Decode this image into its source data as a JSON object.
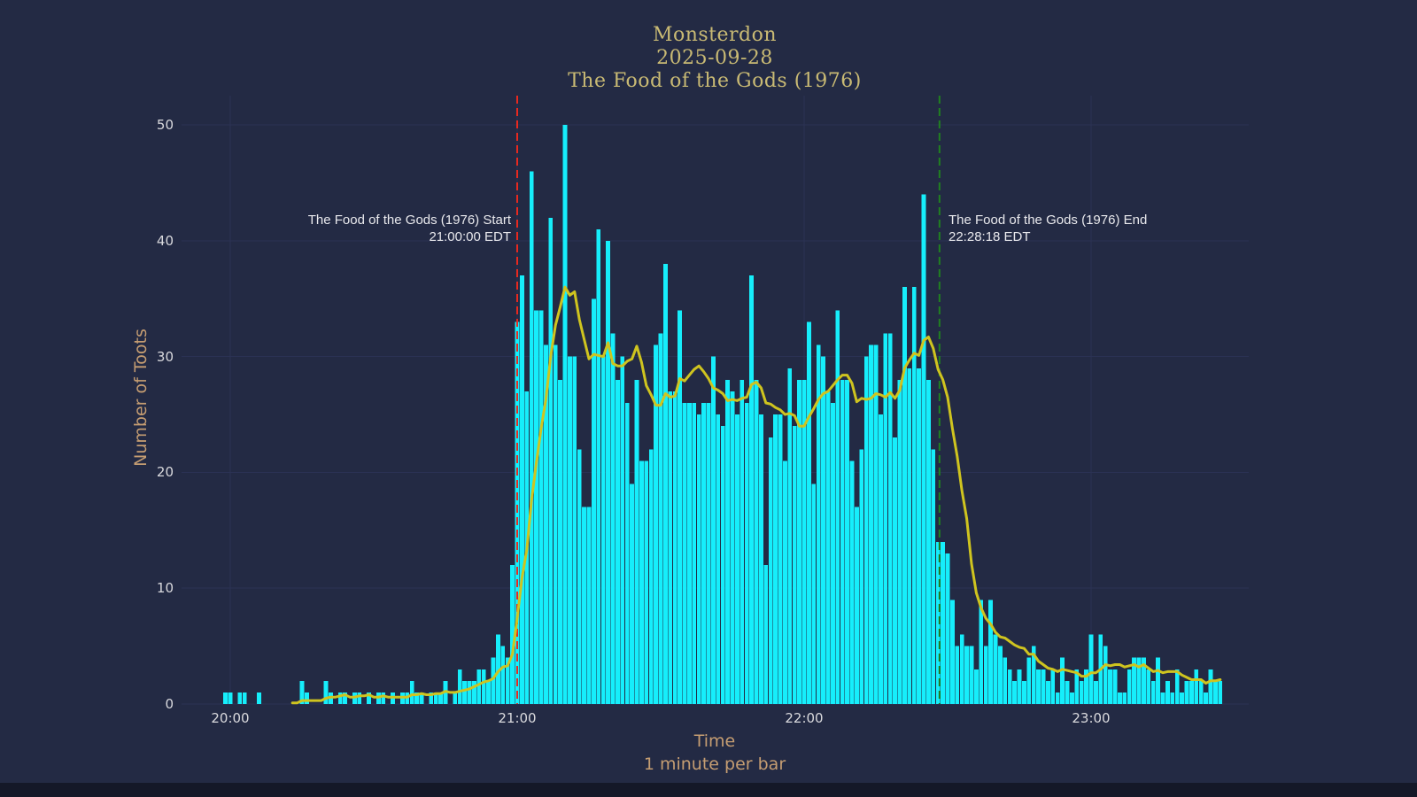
{
  "title": {
    "line1": "Monsterdon",
    "line2": "2025-09-28",
    "line3": "The Food of the Gods (1976)"
  },
  "axes": {
    "y_label": "Number of Toots",
    "x_label": "Time",
    "x_sublabel": "1 minute per bar",
    "y_ticks": [
      {
        "label": "0",
        "v": 0
      },
      {
        "label": "10",
        "v": 10
      },
      {
        "label": "20",
        "v": 20
      },
      {
        "label": "30",
        "v": 30
      },
      {
        "label": "40",
        "v": 40
      },
      {
        "label": "50",
        "v": 50
      }
    ],
    "x_ticks": [
      {
        "label": "20:00",
        "minutes": 0
      },
      {
        "label": "21:00",
        "minutes": 60
      },
      {
        "label": "22:00",
        "minutes": 120
      },
      {
        "label": "23:00",
        "minutes": 180
      }
    ]
  },
  "annotations": {
    "start": {
      "line1": "The Food of the Gods (1976) Start",
      "line2": "21:00:00 EDT"
    },
    "end": {
      "line1": "The Food of the Gods (1976) End",
      "line2": "22:28:18 EDT"
    }
  },
  "colors": {
    "bg": "#232a44",
    "grid": "#2b3254",
    "bar": "#16eefb",
    "line": "#cfc41f",
    "start_marker": "#e8291f",
    "end_marker": "#208020",
    "title": "#c9ba74",
    "tan": "#c59d72",
    "tick": "#d9d9dd",
    "annotation": "#e9e9ed",
    "bottom_strip": "#141828"
  },
  "chart_data": {
    "type": "bar",
    "title": "Monsterdon 2025-09-28 The Food of the Gods (1976)",
    "xlabel": "Time (1 minute per bar)",
    "ylabel": "Number of Toots",
    "x_start_time": "19:59",
    "x_end_time": "23:27",
    "step_minutes": 1,
    "ylim": [
      0,
      52.5
    ],
    "grid": true,
    "overlay_line": "trailing 10-minute moving average of toots per minute",
    "line_window_minutes": 10,
    "line_start_index": 14,
    "start_marker": {
      "time": "21:00:00 EDT",
      "minutes_after_2000": 60
    },
    "end_marker": {
      "time": "22:28:18 EDT",
      "minutes_after_2000": 148.3
    },
    "values": [
      1,
      1,
      0,
      1,
      1,
      0,
      0,
      1,
      0,
      0,
      0,
      0,
      0,
      0,
      0,
      0,
      2,
      1,
      0,
      0,
      0,
      2,
      1,
      0,
      1,
      1,
      0,
      1,
      1,
      0,
      1,
      0,
      1,
      1,
      0,
      1,
      0,
      1,
      1,
      2,
      1,
      1,
      0,
      1,
      1,
      1,
      2,
      0,
      1,
      3,
      2,
      2,
      2,
      3,
      3,
      2,
      4,
      6,
      5,
      4,
      12,
      33,
      37,
      27,
      46,
      34,
      34,
      31,
      42,
      31,
      28,
      50,
      30,
      30,
      22,
      17,
      17,
      35,
      41,
      30,
      40,
      32,
      28,
      30,
      26,
      19,
      28,
      21,
      21,
      22,
      31,
      32,
      38,
      27,
      27,
      34,
      26,
      26,
      26,
      25,
      26,
      26,
      30,
      25,
      24,
      28,
      27,
      25,
      28,
      26,
      37,
      28,
      25,
      12,
      23,
      25,
      25,
      21,
      29,
      24,
      28,
      28,
      33,
      19,
      31,
      30,
      27,
      26,
      34,
      28,
      28,
      21,
      17,
      22,
      30,
      31,
      31,
      25,
      32,
      32,
      23,
      28,
      36,
      29,
      36,
      29,
      44,
      28,
      22,
      14,
      14,
      13,
      9,
      5,
      6,
      5,
      5,
      3,
      9,
      5,
      9,
      6,
      5,
      4,
      3,
      2,
      3,
      2,
      4,
      5,
      3,
      3,
      2,
      3,
      1,
      4,
      2,
      1,
      3,
      2,
      3,
      6,
      2,
      6,
      5,
      3,
      3,
      1,
      1,
      3,
      4,
      4,
      4,
      3,
      2,
      4,
      1,
      2,
      1,
      3,
      1,
      2,
      2,
      3,
      2,
      1,
      3,
      2,
      2
    ]
  }
}
